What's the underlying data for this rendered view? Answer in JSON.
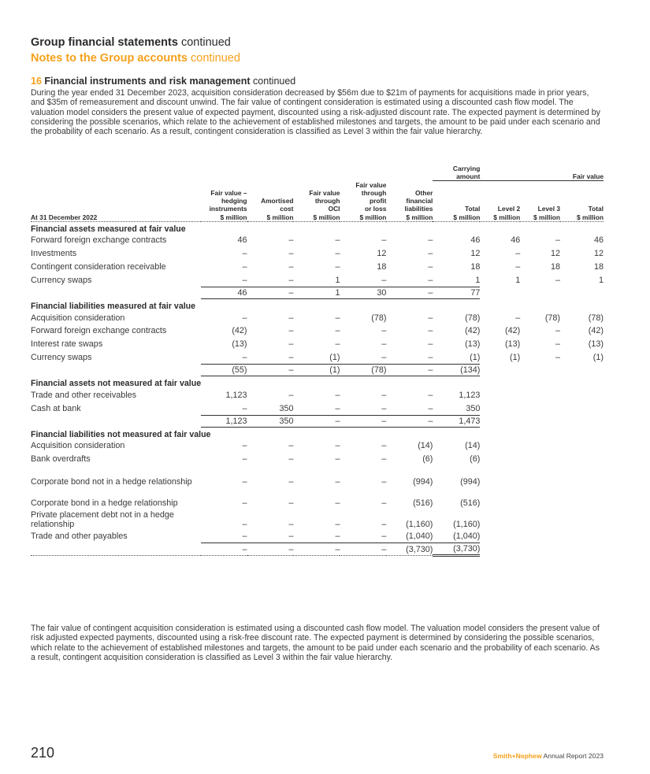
{
  "header": {
    "title_bold": "Group financial statements",
    "title_cont": " continued",
    "subtitle_bold": "Notes to the Group accounts",
    "subtitle_cont": " continued"
  },
  "section": {
    "number": "16",
    "title": " Financial instruments and risk management",
    "cont": " continued"
  },
  "intro": "During the year ended 31 December 2023, acquisition consideration decreased by $56m due to $21m of payments for acquisitions made in prior years, and $35m of remeasurement and discount unwind. The fair value of contingent consideration is estimated using a discounted cash flow model. The valuation model considers the present value of expected payment, discounted using a risk-adjusted discount rate. The expected payment is determined by considering the possible scenarios, which relate to the achievement of established milestones and targets, the amount to be paid under each scenario and the probability of each scenario. As a result, contingent consideration is classified as Level 3 within the fair value hierarchy.",
  "table": {
    "group_headers": {
      "carrying": "Carrying amount",
      "fair": "Fair value"
    },
    "date_label": "At 31 December 2022",
    "columns": [
      "Fair value – hedging instruments $ million",
      "Amortised cost $ million",
      "Fair value through OCI $ million",
      "Fair value through profit or loss $ million",
      "Other financial liabilities $ million",
      "Total $ million",
      "Level 2 $ million",
      "Level 3 $ million",
      "Total $ million"
    ],
    "col_lines": [
      [
        "Fair value –",
        "hedging",
        "instruments",
        "$ million"
      ],
      [
        "Amortised",
        "cost",
        "$ million"
      ],
      [
        "Fair value",
        "through",
        "OCI",
        "$ million"
      ],
      [
        "Fair value",
        "through",
        "profit",
        "or loss",
        "$ million"
      ],
      [
        "Other",
        "financial",
        "liabilities",
        "$ million"
      ],
      [
        "Total",
        "$ million"
      ],
      [
        "Level 2",
        "$ million"
      ],
      [
        "Level 3",
        "$ million"
      ],
      [
        "Total",
        "$ million"
      ]
    ],
    "sections": [
      {
        "heading": "Financial assets measured at fair value",
        "rows": [
          {
            "label": "Forward foreign exchange contracts",
            "values": [
              "46",
              "–",
              "–",
              "–",
              "–",
              "46",
              "46",
              "–",
              "46"
            ]
          },
          {
            "label": "Investments",
            "values": [
              "–",
              "–",
              "–",
              "12",
              "–",
              "12",
              "–",
              "12",
              "12"
            ]
          },
          {
            "label": "Contingent consideration receivable",
            "values": [
              "–",
              "–",
              "–",
              "18",
              "–",
              "18",
              "–",
              "18",
              "18"
            ]
          },
          {
            "label": "Currency swaps",
            "values": [
              "–",
              "–",
              "1",
              "–",
              "–",
              "1",
              "1",
              "–",
              "1"
            ]
          }
        ],
        "total": [
          "46",
          "–",
          "1",
          "30",
          "–",
          "77"
        ]
      },
      {
        "heading": "Financial liabilities measured at fair value",
        "rows": [
          {
            "label": "Acquisition consideration",
            "values": [
              "–",
              "–",
              "–",
              "(78)",
              "–",
              "(78)",
              "–",
              "(78)",
              "(78)"
            ]
          },
          {
            "label": "Forward foreign exchange contracts",
            "values": [
              "(42)",
              "–",
              "–",
              "–",
              "–",
              "(42)",
              "(42)",
              "–",
              "(42)"
            ]
          },
          {
            "label": "Interest rate swaps",
            "values": [
              "(13)",
              "–",
              "–",
              "–",
              "–",
              "(13)",
              "(13)",
              "–",
              "(13)"
            ]
          },
          {
            "label": "Currency swaps",
            "values": [
              "–",
              "–",
              "(1)",
              "–",
              "–",
              "(1)",
              "(1)",
              "–",
              "(1)"
            ]
          }
        ],
        "total": [
          "(55)",
          "–",
          "(1)",
          "(78)",
          "–",
          "(134)"
        ]
      },
      {
        "heading": "Financial assets not measured at fair value",
        "rows": [
          {
            "label": "Trade and other receivables",
            "values": [
              "1,123",
              "–",
              "–",
              "–",
              "–",
              "1,123"
            ]
          },
          {
            "label": "Cash at bank",
            "values": [
              "–",
              "350",
              "–",
              "–",
              "–",
              "350"
            ]
          }
        ],
        "total": [
          "1,123",
          "350",
          "–",
          "–",
          "–",
          "1,473"
        ]
      },
      {
        "heading": "Financial liabilities not measured at fair value",
        "rows": [
          {
            "label": "Acquisition consideration",
            "values": [
              "–",
              "–",
              "–",
              "–",
              "(14)",
              "(14)"
            ]
          },
          {
            "label": "Bank overdrafts",
            "values": [
              "–",
              "–",
              "–",
              "–",
              "(6)",
              "(6)"
            ]
          },
          {
            "label": "Corporate bond not in a hedge relationship",
            "values": [
              "–",
              "–",
              "–",
              "–",
              "(994)",
              "(994)"
            ]
          },
          {
            "label": "Corporate bond in a hedge relationship",
            "values": [
              "–",
              "–",
              "–",
              "–",
              "(516)",
              "(516)"
            ]
          },
          {
            "label": "Private placement debt not in a hedge relationship",
            "values": [
              "–",
              "–",
              "–",
              "–",
              "(1,160)",
              "(1,160)"
            ]
          },
          {
            "label": "Trade and other payables",
            "values": [
              "–",
              "–",
              "–",
              "–",
              "(1,040)",
              "(1,040)"
            ]
          }
        ],
        "total": [
          "–",
          "–",
          "–",
          "–",
          "(3,730)",
          "(3,730)"
        ]
      }
    ]
  },
  "outro": "The fair value of contingent acquisition consideration is estimated using a discounted cash flow model. The valuation model considers the present value of risk adjusted expected payments, discounted using a risk-free discount rate. The expected payment is determined by considering the possible scenarios, which relate to the achievement of established milestones and targets, the amount to be paid under each scenario and the probability of each scenario. As a result, contingent acquisition consideration is classified as Level 3 within the fair value hierarchy.",
  "footer": {
    "page_number": "210",
    "brand": "Smith+Nephew",
    "report": " Annual Report 2023"
  },
  "colors": {
    "accent": "#f5a01a",
    "text": "#2b2b2b"
  }
}
